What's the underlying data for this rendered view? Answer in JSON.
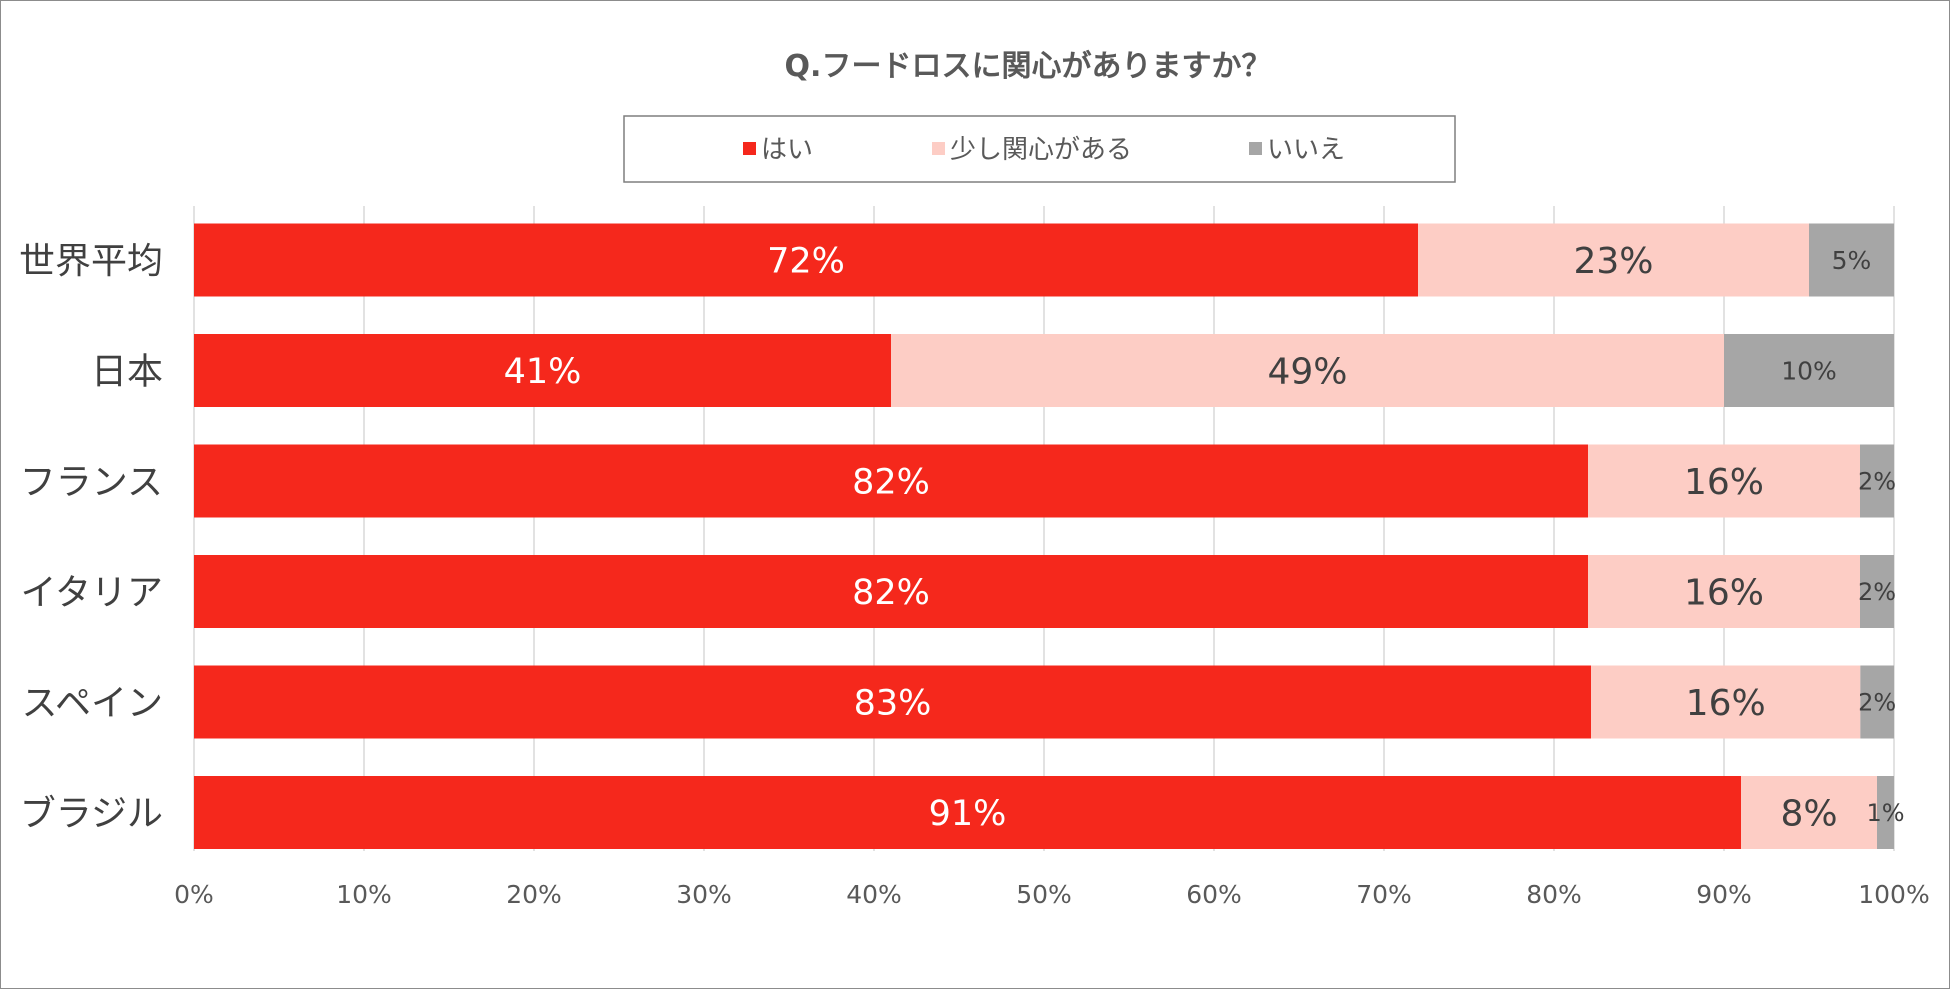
{
  "chart_data": {
    "type": "bar",
    "orientation": "horizontal",
    "stacked": true,
    "title": "Q.フードロスに関心がありますか？",
    "categories": [
      "世界平均",
      "日本",
      "フランス",
      "イタリア",
      "スペイン",
      "ブラジル"
    ],
    "series": [
      {
        "name": "はい",
        "color": "#f5281c",
        "label_color": "#ffffff",
        "values": [
          72,
          41,
          82,
          82,
          83,
          91
        ],
        "labels": [
          "72%",
          "41%",
          "82%",
          "82%",
          "83%",
          "91%"
        ]
      },
      {
        "name": "少し関心がある",
        "color": "#fdcdc5",
        "label_color": "#404040",
        "values": [
          23,
          49,
          16,
          16,
          16,
          8
        ],
        "labels": [
          "23%",
          "49%",
          "16%",
          "16%",
          "16%",
          "8%"
        ]
      },
      {
        "name": "いいえ",
        "color": "#a6a6a6",
        "label_color": "#404040",
        "values": [
          5,
          10,
          2,
          2,
          2,
          1
        ],
        "labels": [
          "5%",
          "10%",
          "2%",
          "2%",
          "2%",
          "1%"
        ]
      }
    ],
    "xlim": [
      0,
      100
    ],
    "xticks": [
      "0%",
      "10%",
      "20%",
      "30%",
      "40%",
      "50%",
      "60%",
      "70%",
      "80%",
      "90%",
      "100%"
    ],
    "grid": true,
    "legend_position": "top"
  }
}
